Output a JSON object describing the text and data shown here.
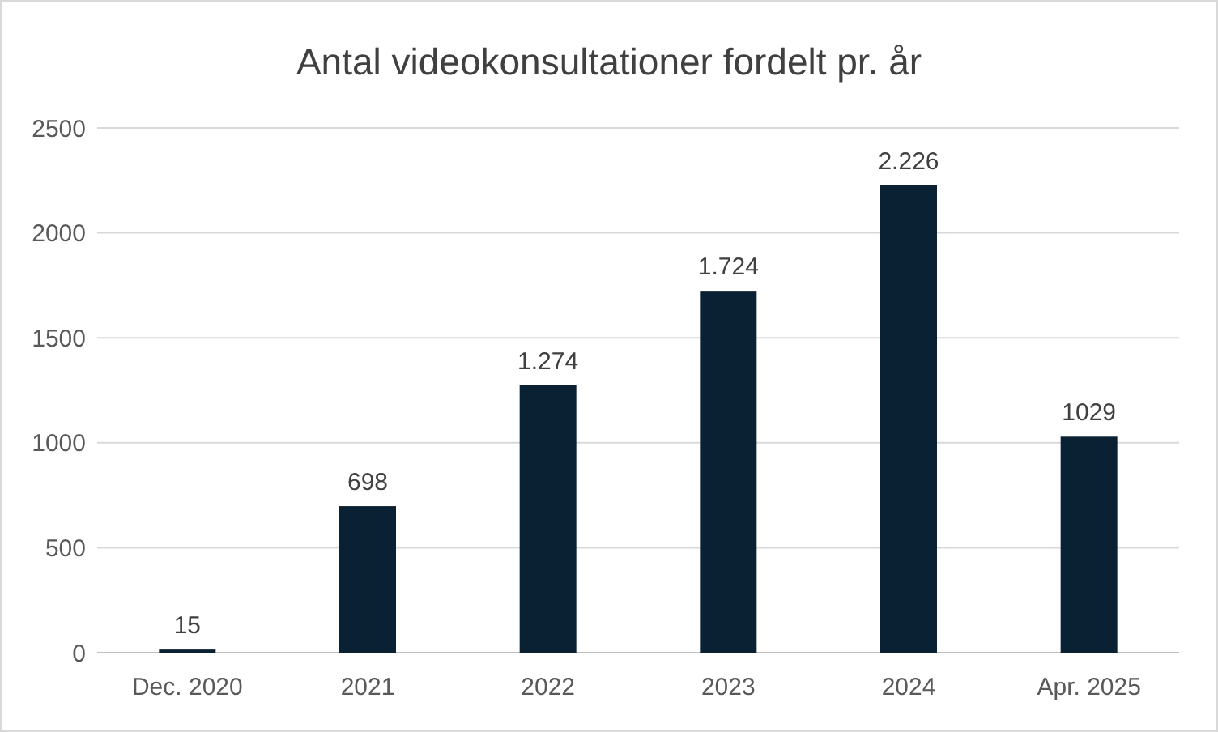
{
  "chart_data": {
    "type": "bar",
    "title": "Antal videokonsultationer fordelt pr. år",
    "categories": [
      "Dec. 2020",
      "2021",
      "2022",
      "2023",
      "2024",
      "Apr. 2025"
    ],
    "values": [
      15,
      698,
      1274,
      1724,
      2226,
      1029
    ],
    "value_labels": [
      "15",
      "698",
      "1.274",
      "1.724",
      "2.226",
      "1029"
    ],
    "color": "#0a2033",
    "ylim": [
      0,
      2500
    ],
    "yticks": [
      0,
      500,
      1000,
      1500,
      2000,
      2500
    ],
    "grid": "y"
  }
}
